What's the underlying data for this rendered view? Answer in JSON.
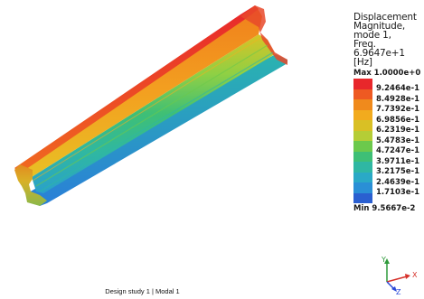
{
  "legend": {
    "title_lines": [
      "Displacement",
      "Magnitude,",
      "mode 1,",
      "Freq.",
      "6.9647e+1",
      "[Hz]"
    ],
    "max_label": "Max",
    "max_value": "1.0000e+0",
    "min_label": "Min",
    "min_value": "9.5667e-2",
    "bands": [
      {
        "color": "#e8272b",
        "value": "9.2464e-1"
      },
      {
        "color": "#ee5a22",
        "value": "8.4928e-1"
      },
      {
        "color": "#f08a1c",
        "value": "7.7392e-1"
      },
      {
        "color": "#f2ab1e",
        "value": "6.9856e-1"
      },
      {
        "color": "#d9c025",
        "value": "6.2319e-1"
      },
      {
        "color": "#b5cd36",
        "value": "5.4783e-1"
      },
      {
        "color": "#6cc94c",
        "value": "4.7247e-1"
      },
      {
        "color": "#3ebf76",
        "value": "3.9711e-1"
      },
      {
        "color": "#2fb7a3",
        "value": "3.2175e-1"
      },
      {
        "color": "#2aa9c6",
        "value": "2.4639e-1"
      },
      {
        "color": "#2a8fd6",
        "value": "1.7103e-1"
      },
      {
        "color": "#2a5fd0",
        "value": ""
      }
    ]
  },
  "footer": {
    "text": "Design study 1 | Modal 1"
  },
  "triad": {
    "x_label": "X",
    "y_label": "Y",
    "z_label": "Z",
    "x_color": "#d6312a",
    "y_color": "#2e9a3a",
    "z_color": "#2a48d8"
  }
}
